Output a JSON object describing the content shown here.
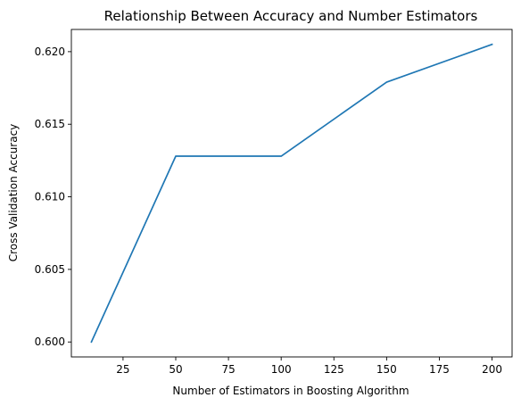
{
  "chart_data": {
    "type": "line",
    "title": "Relationship Between Accuracy and Number Estimators",
    "xlabel": "Number of Estimators in Boosting Algorithm",
    "ylabel": "Cross Validation Accuracy",
    "x": [
      10,
      50,
      100,
      150,
      200
    ],
    "series": [
      {
        "values": [
          0.6,
          0.6128,
          0.6128,
          0.6179,
          0.6205
        ],
        "color": "#1f77b4"
      }
    ],
    "xlim": [
      0.5,
      209.5
    ],
    "ylim": [
      0.59897,
      0.62153
    ],
    "xticks": [
      25,
      50,
      75,
      100,
      125,
      150,
      175,
      200
    ],
    "xtick_labels": [
      "25",
      "50",
      "75",
      "100",
      "125",
      "150",
      "175",
      "200"
    ],
    "yticks": [
      0.6,
      0.605,
      0.61,
      0.615,
      0.62
    ],
    "ytick_labels": [
      "0.600",
      "0.605",
      "0.610",
      "0.615",
      "0.620"
    ],
    "grid": false,
    "legend": "none"
  }
}
